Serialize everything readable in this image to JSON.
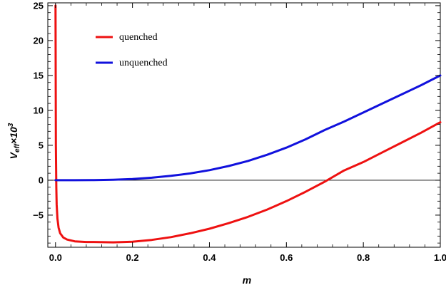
{
  "chart_data": {
    "type": "line",
    "title": "",
    "xlabel": "m",
    "ylabel": {
      "base": "V",
      "sub": "eff",
      "times": "×10",
      "sup": "3"
    },
    "xlim": [
      -0.02,
      1.0
    ],
    "ylim": [
      -9.6,
      25.4
    ],
    "x_ticks": [
      0.0,
      0.2,
      0.4,
      0.6,
      0.8,
      1.0
    ],
    "x_tick_labels": [
      "0.0",
      "0.2",
      "0.4",
      "0.6",
      "0.8",
      "1.0"
    ],
    "y_ticks": [
      -5,
      0,
      5,
      10,
      15,
      20,
      25
    ],
    "y_tick_labels": [
      "−5",
      "0",
      "5",
      "10",
      "15",
      "20",
      "25"
    ],
    "grid": false,
    "legend_position": "top-left",
    "series": [
      {
        "name": "quenched",
        "color": "#ee1111",
        "x": [
          0.0,
          0.001,
          0.002,
          0.003,
          0.005,
          0.008,
          0.012,
          0.02,
          0.03,
          0.05,
          0.08,
          0.1,
          0.15,
          0.2,
          0.25,
          0.3,
          0.35,
          0.4,
          0.45,
          0.5,
          0.55,
          0.6,
          0.65,
          0.7,
          0.75,
          0.8,
          0.85,
          0.9,
          0.95,
          1.0
        ],
        "values": [
          25.0,
          5.0,
          -1.0,
          -3.5,
          -5.5,
          -6.8,
          -7.6,
          -8.2,
          -8.5,
          -8.75,
          -8.85,
          -8.85,
          -8.9,
          -8.8,
          -8.55,
          -8.15,
          -7.6,
          -6.95,
          -6.15,
          -5.25,
          -4.2,
          -3.0,
          -1.65,
          -0.2,
          1.4,
          2.6,
          4.0,
          5.4,
          6.8,
          8.3
        ]
      },
      {
        "name": "unquenched",
        "color": "#1111dd",
        "x": [
          0.0,
          0.05,
          0.1,
          0.15,
          0.2,
          0.25,
          0.3,
          0.35,
          0.4,
          0.45,
          0.5,
          0.55,
          0.6,
          0.65,
          0.7,
          0.75,
          0.8,
          0.85,
          0.9,
          0.95,
          1.0
        ],
        "values": [
          0.0,
          0.0,
          0.02,
          0.07,
          0.18,
          0.36,
          0.62,
          0.97,
          1.44,
          2.03,
          2.76,
          3.64,
          4.67,
          5.86,
          7.2,
          8.4,
          9.7,
          11.0,
          12.3,
          13.6,
          15.0
        ]
      }
    ]
  }
}
